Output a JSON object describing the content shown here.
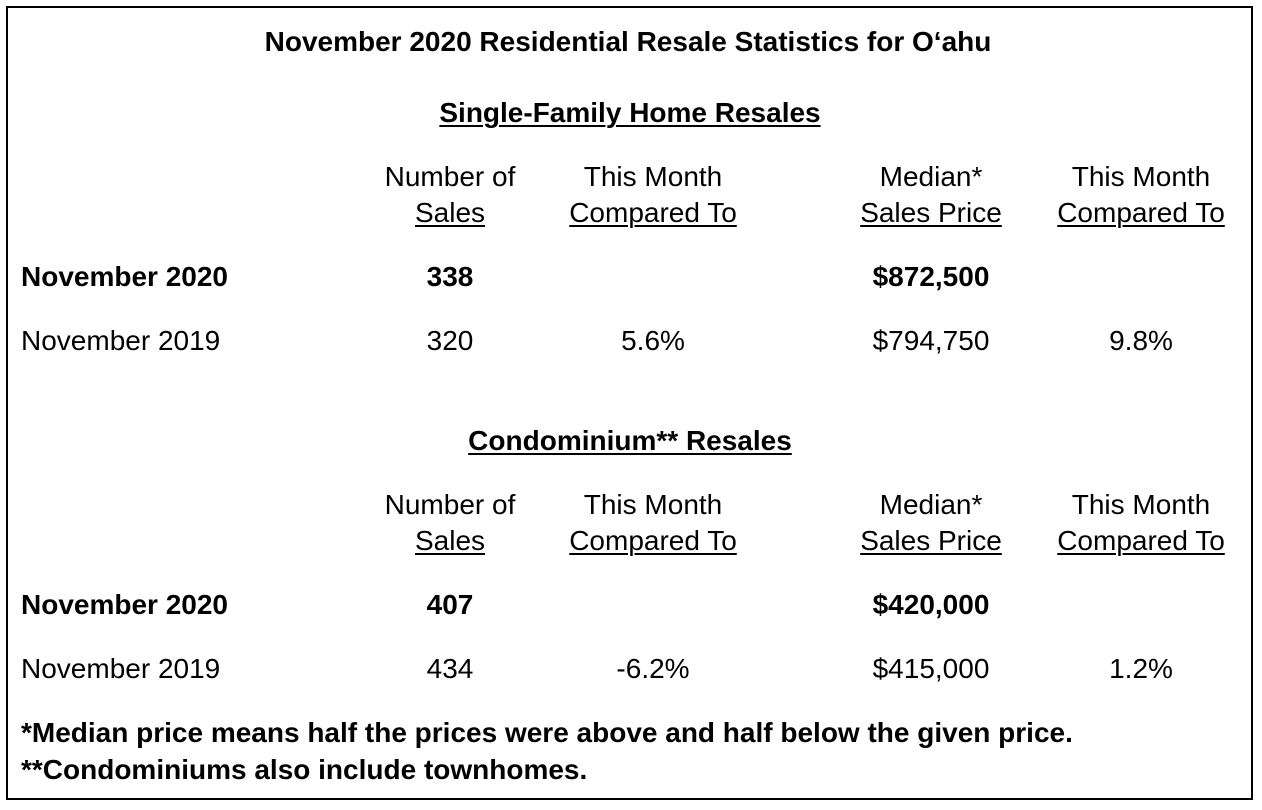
{
  "title": "November 2020 Residential Resale Statistics for O‘ahu",
  "sections": [
    {
      "heading": "Single-Family Home Resales",
      "headers": {
        "sales_line1": "Number of",
        "sales_line2": "Sales",
        "change1_line1": "This Month",
        "change1_line2": "Compared To",
        "price_line1": "Median*",
        "price_line2": "Sales Price",
        "change2_line1": "This Month",
        "change2_line2": "Compared To"
      },
      "rows": [
        {
          "label": "November 2020",
          "sales": "338",
          "sales_change": "",
          "price": "$872,500",
          "price_change": ""
        },
        {
          "label": "November 2019",
          "sales": "320",
          "sales_change": "5.6%",
          "price": "$794,750",
          "price_change": "9.8%"
        }
      ]
    },
    {
      "heading": "Condominium** Resales",
      "headers": {
        "sales_line1": "Number of",
        "sales_line2": "Sales",
        "change1_line1": "This Month",
        "change1_line2": "Compared To",
        "price_line1": "Median*",
        "price_line2": "Sales Price",
        "change2_line1": "This Month",
        "change2_line2": "Compared To"
      },
      "rows": [
        {
          "label": "November 2020",
          "sales": "407",
          "sales_change": "",
          "price": "$420,000",
          "price_change": ""
        },
        {
          "label": "November 2019",
          "sales": "434",
          "sales_change": "-6.2%",
          "price": "$415,000",
          "price_change": "1.2%"
        }
      ]
    }
  ],
  "footnotes": [
    "*Median price means half the prices were above and half below the given price.",
    "**Condominiums also include townhomes."
  ]
}
